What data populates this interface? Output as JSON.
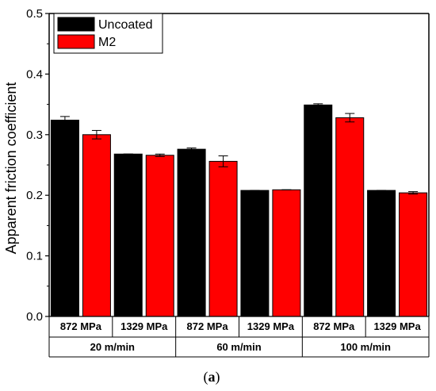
{
  "chart_data": {
    "type": "bar",
    "ylabel": "Apparent friction coefficient",
    "ylim": [
      0,
      0.5
    ],
    "yticks": [
      "0.0",
      "0.1",
      "0.2",
      "0.3",
      "0.4",
      "0.5"
    ],
    "categories": [
      "872 MPa",
      "1329 MPa",
      "872 MPa",
      "1329 MPa",
      "872 MPa",
      "1329 MPa"
    ],
    "groups": [
      "20 m/min",
      "60 m/min",
      "100 m/min"
    ],
    "series": [
      {
        "name": "Uncoated",
        "color": "#000000",
        "values": [
          0.324,
          0.268,
          0.276,
          0.208,
          0.349,
          0.208
        ],
        "errors": [
          0.006,
          0.0,
          0.002,
          0.0,
          0.002,
          0.0
        ]
      },
      {
        "name": "M2",
        "color": "#ff0000",
        "values": [
          0.3,
          0.266,
          0.256,
          0.209,
          0.328,
          0.204
        ],
        "errors": [
          0.007,
          0.002,
          0.009,
          0.0,
          0.007,
          0.002
        ]
      }
    ],
    "legend_position": "top-left",
    "grid": false
  },
  "caption": {
    "open": "(",
    "letter": "a",
    "close": ")"
  }
}
